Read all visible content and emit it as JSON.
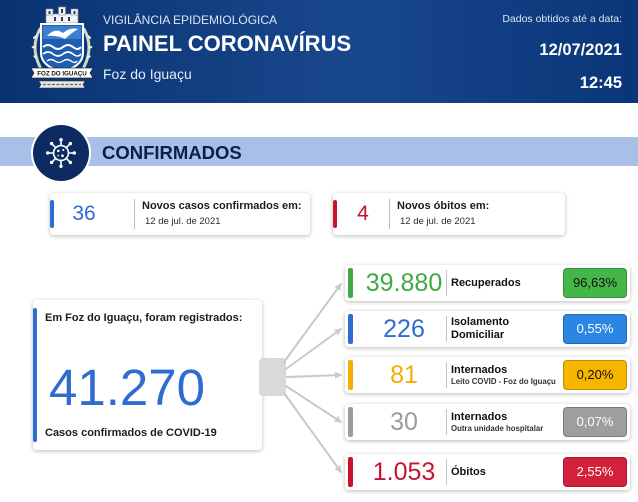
{
  "header": {
    "kicker": "VIGILÂNCIA EPIDEMIOLÓGICA",
    "title": "PAINEL CORONAVÍRUS",
    "city": "Foz do Iguaçu",
    "date_caption": "Dados obtidos até a data:",
    "date": "12/07/2021",
    "time": "12:45"
  },
  "logo": {
    "banner_text": "FOZ DO IGUAÇU"
  },
  "section": {
    "title": "CONFIRMADOS",
    "icon": "virus-icon"
  },
  "new_today": [
    {
      "value": "36",
      "label": "Novos casos confirmados em:",
      "date": "12 de jul. de 2021",
      "color": "#2e6cd1"
    },
    {
      "value": "4",
      "label": "Novos óbitos em:",
      "date": "12 de jul. de 2021",
      "color": "#c7132f"
    }
  ],
  "total": {
    "intro": "Em Foz do Iguaçu, foram registrados:",
    "value": "41.270",
    "caption": "Casos confirmados de COVID-19",
    "color": "#2e6cd1"
  },
  "breakdown": [
    {
      "value": "39.880",
      "label": "Recuperados",
      "percent": "96,63%",
      "color": "#40a944",
      "badge_color": "#45b649",
      "badge_text_color": "#111111"
    },
    {
      "value": "226",
      "label": "Isolamento Domiciliar",
      "percent": "0,55%",
      "color": "#2e6cd1",
      "badge_color": "#2b86e3",
      "badge_text_color": "#ffffff"
    },
    {
      "value": "81",
      "label": "Internados",
      "sublabel": "Leito COVID - Foz do Iguaçu",
      "percent": "0,20%",
      "color": "#f4ad00",
      "badge_color": "#f7b500",
      "badge_text_color": "#111111"
    },
    {
      "value": "30",
      "label": "Internados",
      "sublabel": "Outra unidade hospitalar",
      "percent": "0,07%",
      "color": "#9c9c9c",
      "badge_color": "#9e9e9e",
      "badge_text_color": "#ffffff"
    },
    {
      "value": "1.053",
      "label": "Óbitos",
      "percent": "2,55%",
      "color": "#c7132f",
      "badge_color": "#d3203b",
      "badge_text_color": "#ffffff"
    }
  ],
  "colors": {
    "header_bg": "#0b3c86",
    "section_bar": "#a8c0e8",
    "connector": "#c9c9c9"
  }
}
